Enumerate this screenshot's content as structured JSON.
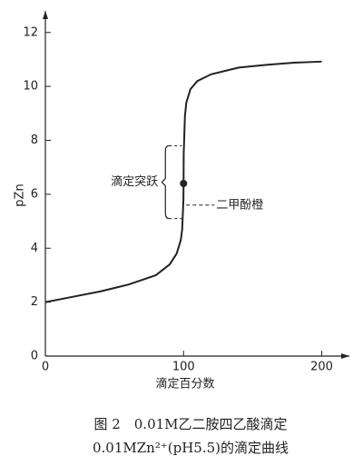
{
  "chart_data": {
    "type": "line",
    "xlabel": "滴定百分数",
    "ylabel": "pZn",
    "x": [
      0,
      20,
      40,
      60,
      80,
      90,
      95,
      98,
      99,
      99.9,
      100,
      100.1,
      101,
      102,
      105,
      110,
      120,
      140,
      160,
      180,
      200
    ],
    "values": [
      2.0,
      2.2,
      2.4,
      2.65,
      3.0,
      3.4,
      3.8,
      4.3,
      4.7,
      5.8,
      6.4,
      7.5,
      8.9,
      9.4,
      9.9,
      10.2,
      10.45,
      10.7,
      10.8,
      10.88,
      10.92
    ],
    "color": "#222222",
    "marker": {
      "x": 100,
      "y": 6.4
    },
    "jump_range": [
      5.1,
      7.8
    ],
    "jump_label": "滴定突跃",
    "indicator_pZn": 5.6,
    "indicator_label": "二甲酚橙",
    "xlim": [
      0,
      220
    ],
    "ylim": [
      0,
      12.8
    ],
    "xticks": [
      0,
      100,
      200
    ],
    "yticks": [
      0,
      2,
      4,
      6,
      8,
      10,
      12
    ],
    "caption": [
      "图 2　0.01M乙二胺四乙酸滴定",
      "0.01MZn²⁺(pH5.5)的滴定曲线"
    ]
  }
}
